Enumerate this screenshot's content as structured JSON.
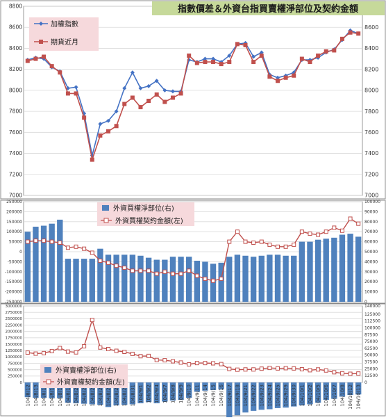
{
  "title": "指數價差＆外資台指買賣權淨部位及契約金額",
  "x_labels": [
    "104/8/12",
    "104/8/13",
    "104/8/14",
    "104/8/17",
    "104/8/18",
    "104/8/19",
    "104/8/20",
    "104/8/21",
    "104/8/24",
    "104/8/25",
    "104/8/26",
    "104/8/27",
    "104/8/28",
    "104/8/31",
    "104/9/1",
    "104/9/2",
    "104/9/4",
    "104/9/7",
    "104/9/8",
    "104/9/9",
    "104/9/10",
    "104/9/11",
    "104/9/14",
    "104/9/15",
    "104/9/16",
    "104/9/17",
    "104/9/18",
    "104/9/21",
    "104/9/22",
    "104/9/23",
    "104/9/24",
    "104/9/25",
    "104/9/29",
    "104/9/30",
    "104/10/1",
    "104/10/2",
    "104/10/5",
    "104/10/6",
    "104/10/7",
    "104/10/8",
    "104/10/12",
    "104/10/13"
  ],
  "colors": {
    "blue_line": "#4472c4",
    "red_line": "#c0504d",
    "bar": "#4f81bd",
    "title_bg": "#c6d99a"
  },
  "chart_data": [
    {
      "type": "line",
      "legend_placement": "top-left",
      "ylim": [
        7000,
        8800
      ],
      "yticks": [
        "7000",
        "7200",
        "7400",
        "7600",
        "7800",
        "8000",
        "8200",
        "8400",
        "8600",
        "8800"
      ],
      "grid": true,
      "series": [
        {
          "name": "加權指數",
          "values": [
            8290,
            8310,
            8300,
            8220,
            8180,
            8020,
            8030,
            7780,
            7380,
            7680,
            7710,
            7800,
            8020,
            8170,
            8020,
            8040,
            8090,
            8000,
            7990,
            7990,
            8290,
            8270,
            8300,
            8300,
            8270,
            8330,
            8440,
            8450,
            8320,
            8360,
            8150,
            8120,
            8140,
            8170,
            8290,
            8290,
            8310,
            8360,
            8390,
            8480,
            8570,
            8540
          ]
        },
        {
          "name": "期貨近月",
          "values": [
            8280,
            8300,
            8320,
            8230,
            8170,
            7970,
            7970,
            7740,
            7340,
            7570,
            7610,
            7660,
            7870,
            7930,
            7840,
            7900,
            7960,
            7890,
            7930,
            7970,
            8330,
            8260,
            8270,
            8270,
            8250,
            8270,
            8440,
            8430,
            8270,
            8330,
            8130,
            8090,
            8120,
            8140,
            8300,
            8270,
            8330,
            8370,
            8380,
            8490,
            8550,
            8540
          ]
        }
      ]
    },
    {
      "type": "bar",
      "legend_placement": "top-center",
      "y_left": [
        -250000,
        250000
      ],
      "y_left_ticks": [
        "-250000",
        "-200000",
        "-150000",
        "-100000",
        "-50000",
        "0",
        "50000",
        "100000",
        "150000",
        "200000",
        "250000"
      ],
      "y_right": [
        0,
        100000
      ],
      "y_right_ticks": [
        "0",
        "10000",
        "20000",
        "30000",
        "40000",
        "50000",
        "60000",
        "70000",
        "80000",
        "90000",
        "100000"
      ],
      "series": [
        {
          "name": "外資買權淨部位(右)",
          "axis": "right",
          "values": [
            70000,
            75000,
            76000,
            78000,
            82000,
            43000,
            43000,
            43000,
            43000,
            53000,
            47000,
            47000,
            47000,
            47000,
            46000,
            44000,
            42000,
            42000,
            45000,
            45000,
            45000,
            41000,
            40000,
            38000,
            39000,
            45000,
            47000,
            46000,
            45000,
            46000,
            47000,
            47000,
            46000,
            46000,
            60000,
            60000,
            62000,
            63000,
            64000,
            67000,
            68000,
            65000
          ]
        },
        {
          "name": "外資買權契約金額(左)",
          "axis": "left",
          "values": [
            50000,
            55000,
            55000,
            50000,
            45000,
            20000,
            25000,
            15000,
            -5000,
            -45000,
            -55000,
            -70000,
            -80000,
            -95000,
            -95000,
            -95000,
            -110000,
            -100000,
            -110000,
            -110000,
            -95000,
            -120000,
            -135000,
            -145000,
            -135000,
            50000,
            100000,
            50000,
            45000,
            50000,
            35000,
            25000,
            25000,
            35000,
            100000,
            90000,
            85000,
            100000,
            120000,
            105000,
            165000,
            140000
          ]
        }
      ]
    },
    {
      "type": "bar",
      "legend_placement": "bottom-left",
      "y_left": [
        0,
        3000000
      ],
      "y_left_ticks": [
        "0",
        "250000",
        "500000",
        "750000",
        "1000000",
        "1250000",
        "1500000",
        "1750000",
        "2000000",
        "2250000",
        "2500000",
        "2750000",
        "3000000"
      ],
      "y_right": [
        0,
        140000
      ],
      "y_right_ticks": [
        "0",
        "12500",
        "25000",
        "37500",
        "50000",
        "62500",
        "75000",
        "87500",
        "100000",
        "112500",
        "125000",
        "140000"
      ],
      "series": [
        {
          "name": "外資賣權淨部位(右)",
          "axis": "right",
          "values": [
            -27000,
            -28000,
            -28000,
            -29000,
            -29000,
            -37000,
            -38000,
            -39000,
            -40000,
            -41000,
            -45000,
            -42000,
            -41000,
            -40000,
            -38000,
            -36000,
            -38000,
            -35000,
            -33000,
            -32000,
            -28000,
            -17000,
            -15000,
            -14000,
            -13000,
            -67000,
            -60000,
            -55000,
            -52000,
            -50000,
            -49000,
            -47000,
            -46000,
            -44000,
            -42000,
            -40000,
            -37000,
            -32000,
            -30000,
            -26000,
            -23000,
            -22000
          ]
        },
        {
          "name": "外資賣權契約金額(左)",
          "axis": "left",
          "values": [
            1170000,
            1130000,
            1150000,
            1230000,
            1350000,
            1210000,
            1180000,
            1420000,
            2450000,
            1370000,
            1310000,
            1240000,
            1200000,
            1120000,
            1030000,
            1040000,
            880000,
            870000,
            830000,
            780000,
            710000,
            760000,
            760000,
            750000,
            720000,
            530000,
            500000,
            510000,
            510000,
            540000,
            570000,
            550000,
            560000,
            550000,
            520000,
            480000,
            510000,
            470000,
            400000,
            360000,
            340000,
            350000
          ]
        }
      ]
    }
  ]
}
